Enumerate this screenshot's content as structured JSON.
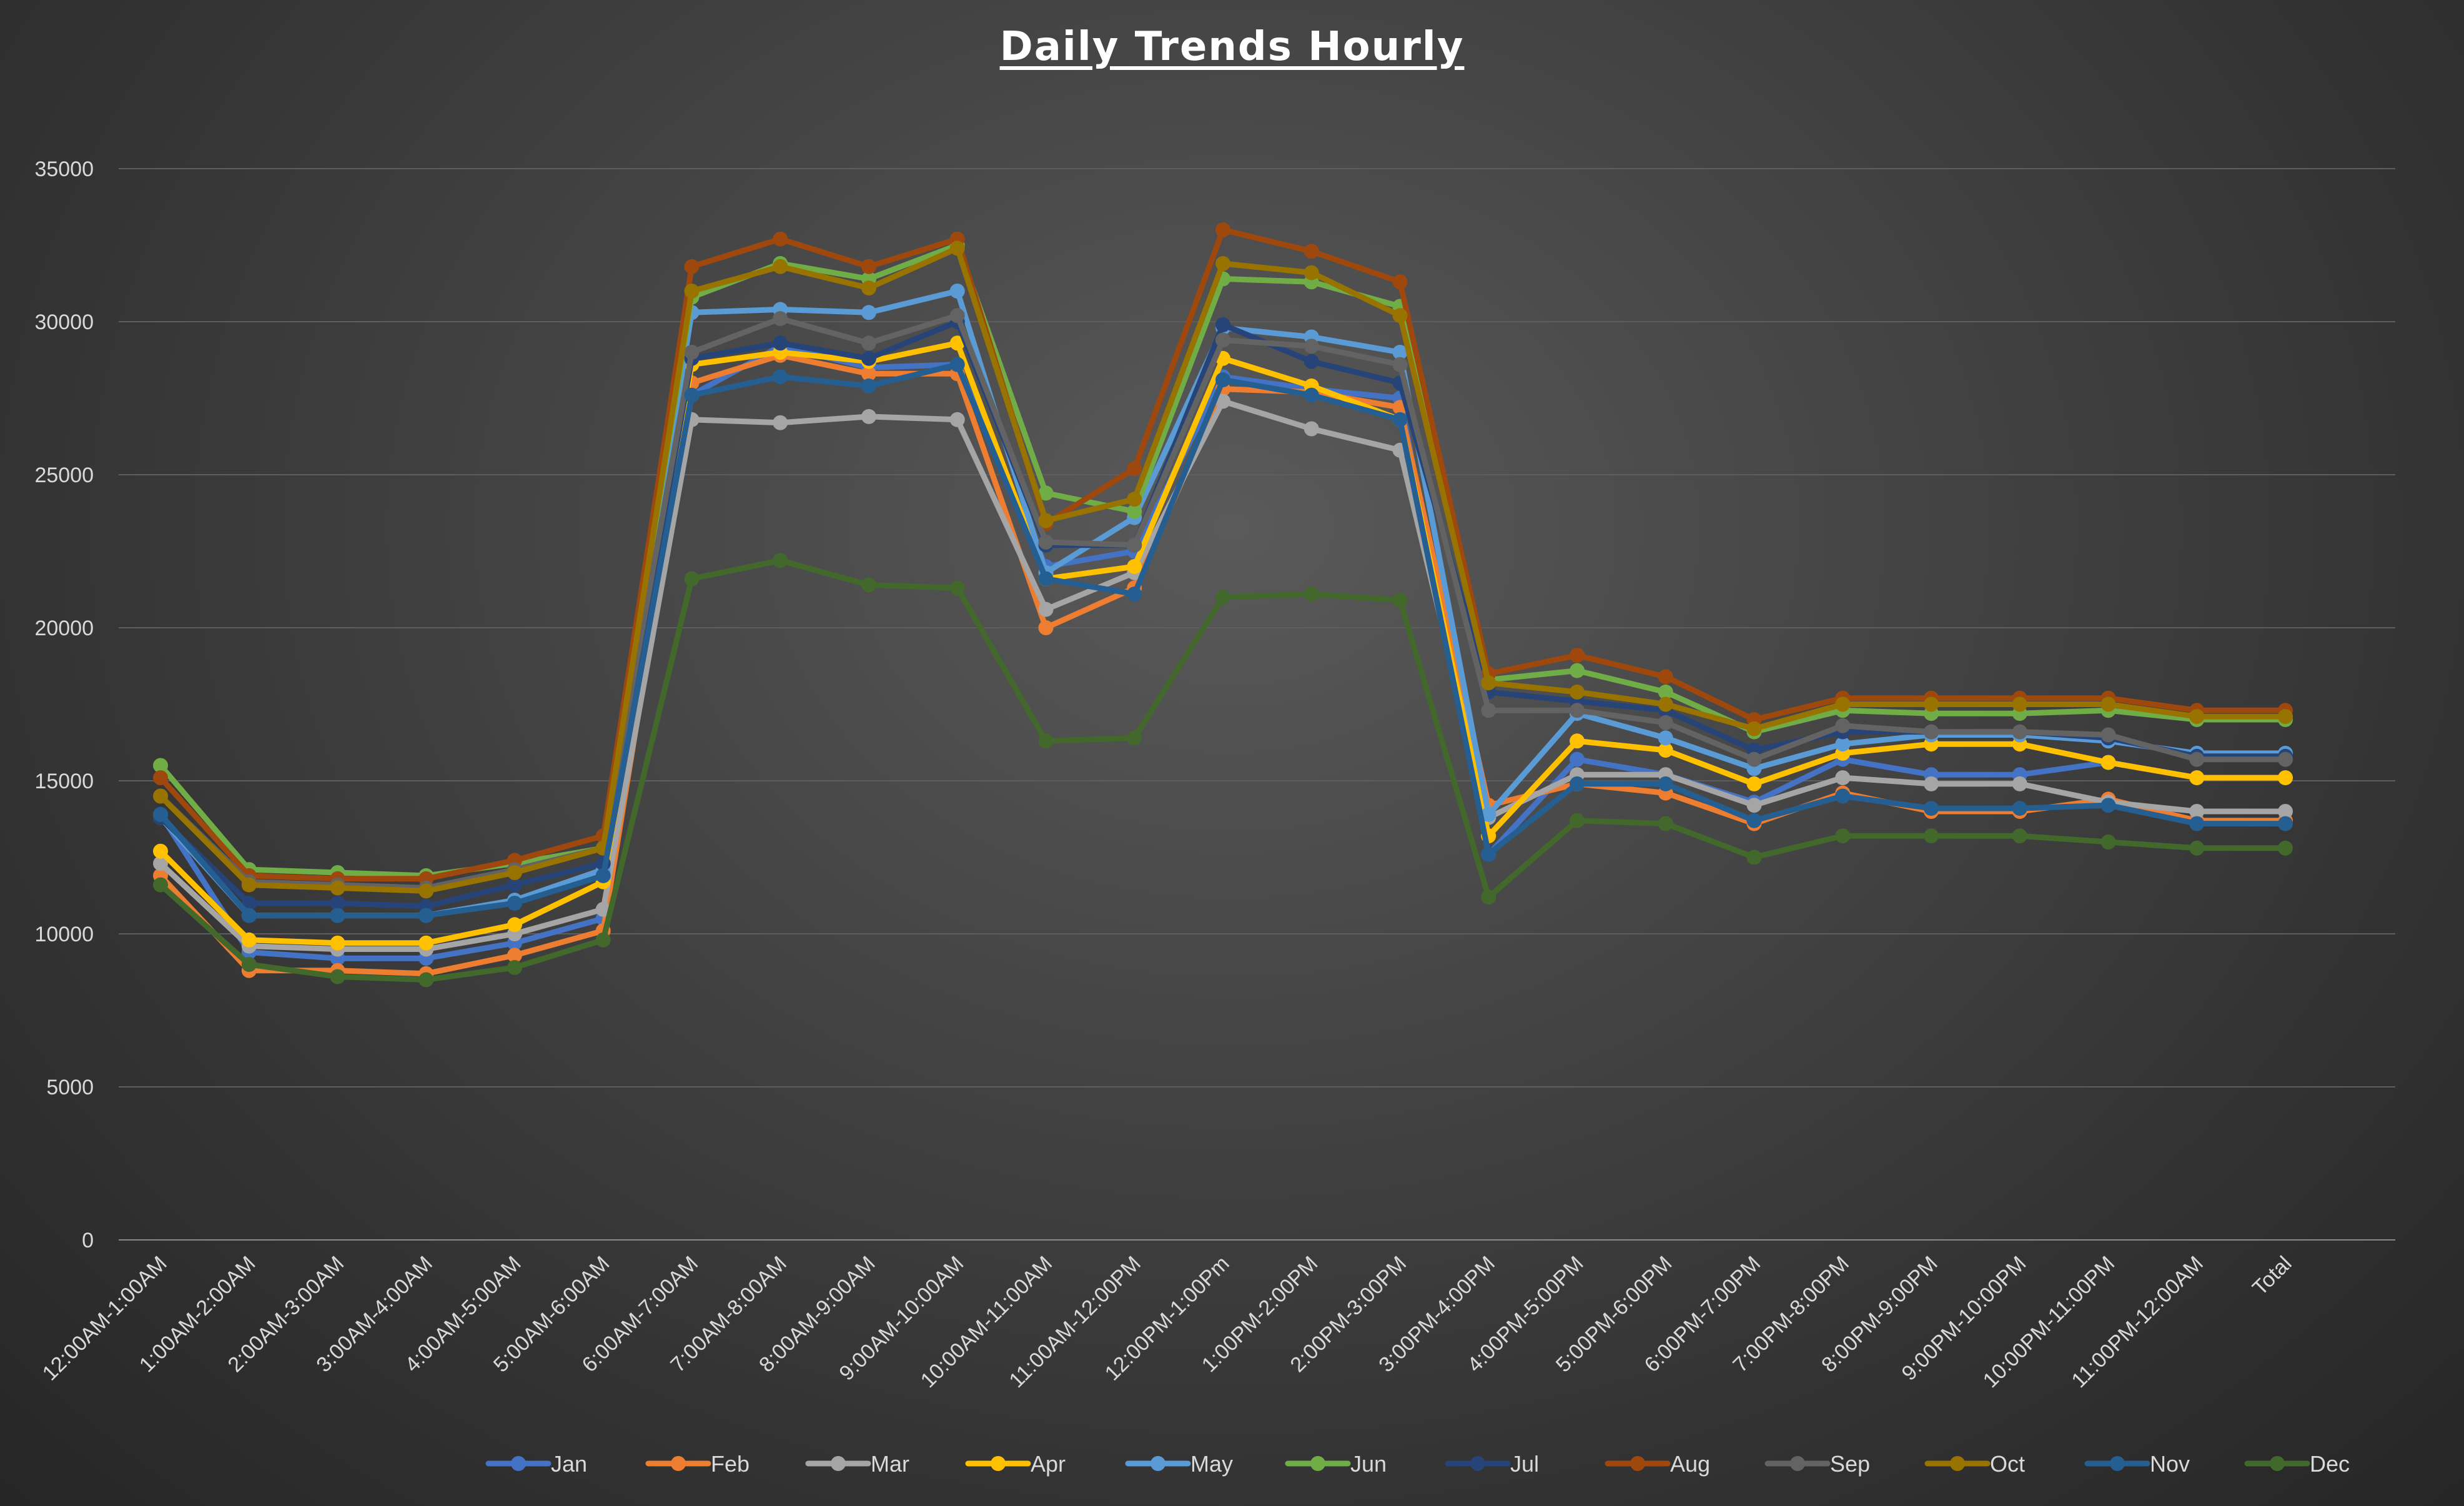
{
  "chart_data": {
    "type": "line",
    "title": "Daily Trends Hourly",
    "xlabel": "",
    "ylabel": "",
    "ylim": [
      0,
      35000
    ],
    "yticks": [
      0,
      5000,
      10000,
      15000,
      20000,
      25000,
      30000,
      35000
    ],
    "grid": true,
    "legend_position": "bottom",
    "categories": [
      "12:00AM-1:00AM",
      "1:00AM-2:00AM",
      "2:00AM-3:00AM",
      "3:00AM-4:00AM",
      "4:00AM-5:00AM",
      "5:00AM-6:00AM",
      "6:00AM-7:00AM",
      "7:00AM-8:00AM",
      "8:00AM-9:00AM",
      "9:00AM-10:00AM",
      "10:00AM-11:00AM",
      "11:00AM-12:00PM",
      "12:00PM-1:00Pm",
      "1:00PM-2:00PM",
      "2:00PM-3:00PM",
      "3:00PM-4:00PM",
      "4:00PM-5:00PM",
      "5:00PM-6:00PM",
      "6:00PM-7:00PM",
      "7:00PM-8:00PM",
      "8:00PM-9:00PM",
      "9:00PM-10:00PM",
      "10:00PM-11:00PM",
      "11:00PM-12:00AM",
      "Total"
    ],
    "series": [
      {
        "name": "Jan",
        "color": "#4472c4",
        "values": [
          13900,
          9400,
          9200,
          9200,
          9700,
          10500,
          27600,
          29200,
          28500,
          28600,
          22000,
          22500,
          28200,
          27800,
          27500,
          12600,
          15700,
          15200,
          14300,
          15700,
          15200,
          15200,
          15600,
          15100,
          15100
        ]
      },
      {
        "name": "Feb",
        "color": "#ed7d31",
        "values": [
          11900,
          8800,
          8800,
          8700,
          9300,
          10100,
          28000,
          28900,
          28300,
          28300,
          20000,
          21300,
          27800,
          27700,
          27200,
          14200,
          14900,
          14600,
          13600,
          14600,
          14000,
          14000,
          14400,
          13700,
          13700
        ]
      },
      {
        "name": "Mar",
        "color": "#a5a5a5",
        "values": [
          12300,
          9600,
          9500,
          9500,
          10000,
          10800,
          26800,
          26700,
          26900,
          26800,
          20600,
          21800,
          27400,
          26500,
          25800,
          13800,
          15200,
          15200,
          14200,
          15100,
          14900,
          14900,
          14300,
          14000,
          14000
        ]
      },
      {
        "name": "Apr",
        "color": "#ffc000",
        "values": [
          12700,
          9800,
          9700,
          9700,
          10300,
          11700,
          28600,
          29000,
          28700,
          29300,
          21600,
          22000,
          28800,
          27900,
          26800,
          13200,
          16300,
          16000,
          14900,
          15900,
          16200,
          16200,
          15600,
          15100,
          15100
        ]
      },
      {
        "name": "May",
        "color": "#5b9bd5",
        "values": [
          13800,
          10600,
          10600,
          10600,
          11100,
          12100,
          30300,
          30400,
          30300,
          31000,
          21800,
          23600,
          29800,
          29500,
          29000,
          13900,
          17200,
          16400,
          15400,
          16200,
          16500,
          16500,
          16300,
          15900,
          15900
        ]
      },
      {
        "name": "Jun",
        "color": "#70ad47",
        "values": [
          15500,
          12100,
          12000,
          11900,
          12300,
          12800,
          30800,
          31900,
          31400,
          32500,
          24400,
          23800,
          31400,
          31300,
          30500,
          18300,
          18600,
          17900,
          16600,
          17300,
          17200,
          17200,
          17300,
          17000,
          17000
        ]
      },
      {
        "name": "Jul",
        "color": "#264478",
        "values": [
          13800,
          11000,
          11000,
          10900,
          11600,
          12300,
          28800,
          29300,
          28800,
          30000,
          22700,
          22700,
          29900,
          28700,
          28000,
          17900,
          17600,
          17300,
          16000,
          16600,
          16600,
          16600,
          16400,
          15800,
          15800
        ]
      },
      {
        "name": "Aug",
        "color": "#9e480e",
        "values": [
          15100,
          11900,
          11800,
          11800,
          12400,
          13200,
          31800,
          32700,
          31800,
          32700,
          23400,
          25200,
          33000,
          32300,
          31300,
          18500,
          19100,
          18400,
          17000,
          17700,
          17700,
          17700,
          17700,
          17300,
          17300
        ]
      },
      {
        "name": "Sep",
        "color": "#636363",
        "values": [
          14500,
          11700,
          11600,
          11500,
          12100,
          12800,
          29000,
          30100,
          29300,
          30200,
          22800,
          22700,
          29400,
          29200,
          28600,
          17300,
          17300,
          16900,
          15700,
          16800,
          16600,
          16600,
          16500,
          15700,
          15700
        ]
      },
      {
        "name": "Oct",
        "color": "#997300",
        "values": [
          14500,
          11600,
          11500,
          11400,
          12000,
          12800,
          31000,
          31800,
          31100,
          32400,
          23500,
          24200,
          31900,
          31600,
          30200,
          18200,
          17900,
          17500,
          16700,
          17500,
          17500,
          17500,
          17500,
          17100,
          17100
        ]
      },
      {
        "name": "Nov",
        "color": "#255e91",
        "values": [
          13900,
          10600,
          10600,
          10600,
          11000,
          11900,
          27600,
          28200,
          27900,
          28600,
          21600,
          21100,
          28100,
          27600,
          26800,
          12600,
          14900,
          14900,
          13700,
          14500,
          14100,
          14100,
          14200,
          13600,
          13600
        ]
      },
      {
        "name": "Dec",
        "color": "#43682b",
        "values": [
          11600,
          9000,
          8600,
          8500,
          8900,
          9800,
          21600,
          22200,
          21400,
          21300,
          16300,
          16400,
          21000,
          21100,
          20900,
          11200,
          13700,
          13600,
          12500,
          13200,
          13200,
          13200,
          13000,
          12800,
          12800
        ]
      }
    ]
  }
}
